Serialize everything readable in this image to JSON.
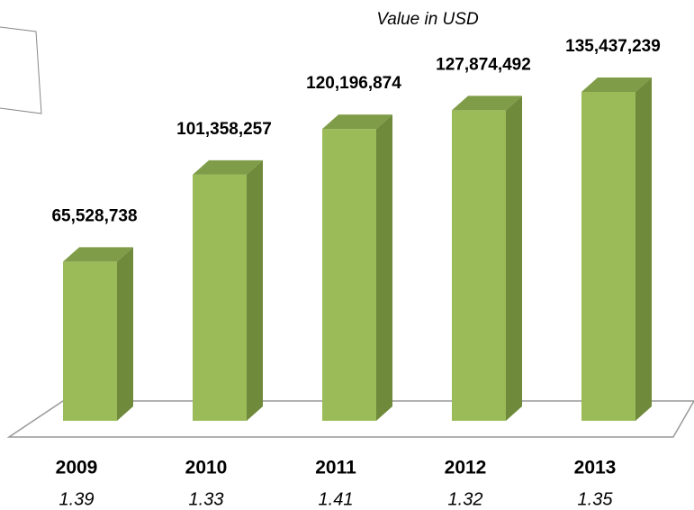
{
  "chart_data": {
    "type": "bar",
    "subtitle": "Value in USD",
    "categories": [
      "2009",
      "2010",
      "2011",
      "2012",
      "2013"
    ],
    "values": [
      65528738,
      101358257,
      120196874,
      127874492,
      135437239
    ],
    "value_labels": [
      "65,528,738",
      "101,358,257",
      "120,196,874",
      "127,874,492",
      "135,437,239"
    ],
    "ratios": [
      1.39,
      1.33,
      1.41,
      1.32,
      1.35
    ],
    "color": "#9bbb59"
  }
}
